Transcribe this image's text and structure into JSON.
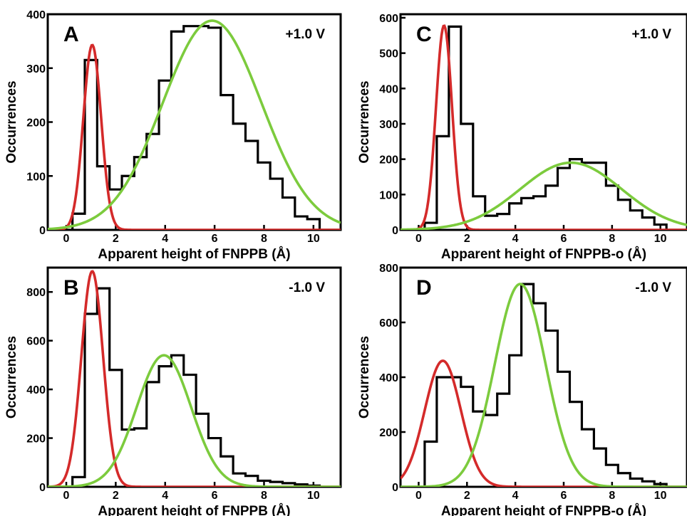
{
  "chart_data": [
    {
      "type": "line",
      "panel": "A",
      "annotation": "+1.0 V",
      "xlabel": "Apparent height of FNPPB (Å)",
      "ylabel": "Occurrences",
      "xlim": [
        -0.75,
        11.1
      ],
      "ylim": [
        0,
        400
      ],
      "xticks": [
        0,
        2,
        4,
        6,
        8,
        10
      ],
      "yticks": [
        0,
        100,
        200,
        300,
        400
      ],
      "histogram": {
        "bin_edges": [
          -0.25,
          0.25,
          0.75,
          1.25,
          1.75,
          2.25,
          2.75,
          3.25,
          3.75,
          4.25,
          4.75,
          5.25,
          5.75,
          6.25,
          6.75,
          7.25,
          7.75,
          8.25,
          8.75,
          9.25,
          9.75,
          10.25,
          10.75
        ],
        "counts": [
          0,
          30,
          315,
          118,
          75,
          100,
          135,
          178,
          277,
          368,
          378,
          378,
          375,
          250,
          197,
          165,
          125,
          95,
          60,
          25,
          20,
          0
        ]
      },
      "series": [
        {
          "color": "#d42a2a",
          "mean": 1.05,
          "amplitude": 343,
          "sigma": 0.36
        },
        {
          "color": "#7ccb3d",
          "mean": 5.9,
          "amplitude": 388,
          "sigma": 2.0
        }
      ]
    },
    {
      "type": "line",
      "panel": "B",
      "annotation": "-1.0 V",
      "xlabel": "Apparent height of FNPPB (Å)",
      "ylabel": "Occurrences",
      "xlim": [
        -0.75,
        11.1
      ],
      "ylim": [
        0,
        900
      ],
      "xticks": [
        0,
        2,
        4,
        6,
        8,
        10
      ],
      "yticks": [
        0,
        200,
        400,
        600,
        800
      ],
      "histogram": {
        "bin_edges": [
          -0.25,
          0.25,
          0.75,
          1.25,
          1.75,
          2.25,
          2.75,
          3.25,
          3.75,
          4.25,
          4.75,
          5.25,
          5.75,
          6.25,
          6.75,
          7.25,
          7.75,
          8.25,
          8.75,
          9.25,
          9.75,
          10.25,
          10.75
        ],
        "counts": [
          0,
          40,
          710,
          815,
          480,
          235,
          240,
          430,
          495,
          540,
          460,
          300,
          200,
          125,
          55,
          45,
          25,
          20,
          15,
          10,
          5,
          0
        ]
      },
      "series": [
        {
          "color": "#d42a2a",
          "mean": 1.05,
          "amplitude": 885,
          "sigma": 0.44
        },
        {
          "color": "#7ccb3d",
          "mean": 3.95,
          "amplitude": 540,
          "sigma": 1.1
        }
      ]
    },
    {
      "type": "line",
      "panel": "C",
      "annotation": "+1.0 V",
      "xlabel": "Apparent height of FNPPB-o (Å)",
      "ylabel": "Occurrences",
      "xlim": [
        -0.75,
        11.1
      ],
      "ylim": [
        0,
        610
      ],
      "xticks": [
        0,
        2,
        4,
        6,
        8,
        10
      ],
      "yticks": [
        0,
        100,
        200,
        300,
        400,
        500,
        600
      ],
      "histogram": {
        "bin_edges": [
          -0.25,
          0.25,
          0.75,
          1.25,
          1.75,
          2.25,
          2.75,
          3.25,
          3.75,
          4.25,
          4.75,
          5.25,
          5.75,
          6.25,
          6.75,
          7.25,
          7.75,
          8.25,
          8.75,
          9.25,
          9.75,
          10.25,
          10.75
        ],
        "counts": [
          0,
          20,
          265,
          575,
          300,
          95,
          40,
          45,
          75,
          90,
          95,
          125,
          175,
          200,
          190,
          190,
          125,
          85,
          55,
          35,
          15,
          0
        ]
      },
      "series": [
        {
          "color": "#d42a2a",
          "mean": 1.05,
          "amplitude": 578,
          "sigma": 0.33
        },
        {
          "color": "#7ccb3d",
          "mean": 6.3,
          "amplitude": 190,
          "sigma": 2.1
        }
      ]
    },
    {
      "type": "line",
      "panel": "D",
      "annotation": "-1.0 V",
      "xlabel": "Apparent height of FNPPB-o (Å)",
      "ylabel": "Occurrences",
      "xlim": [
        -0.75,
        11.1
      ],
      "ylim": [
        0,
        800
      ],
      "xticks": [
        0,
        2,
        4,
        6,
        8,
        10
      ],
      "yticks": [
        0,
        200,
        400,
        600,
        800
      ],
      "histogram": {
        "bin_edges": [
          -0.25,
          0.25,
          0.75,
          1.25,
          1.75,
          2.25,
          2.75,
          3.25,
          3.75,
          4.25,
          4.75,
          5.25,
          5.75,
          6.25,
          6.75,
          7.25,
          7.75,
          8.25,
          8.75,
          9.25,
          9.75,
          10.25,
          10.75
        ],
        "counts": [
          0,
          165,
          400,
          400,
          365,
          275,
          262,
          340,
          480,
          740,
          670,
          570,
          420,
          310,
          210,
          140,
          80,
          50,
          30,
          20,
          10,
          0
        ]
      },
      "series": [
        {
          "color": "#d42a2a",
          "mean": 1.0,
          "amplitude": 460,
          "sigma": 0.75
        },
        {
          "color": "#7ccb3d",
          "mean": 4.2,
          "amplitude": 740,
          "sigma": 1.05
        }
      ]
    }
  ]
}
